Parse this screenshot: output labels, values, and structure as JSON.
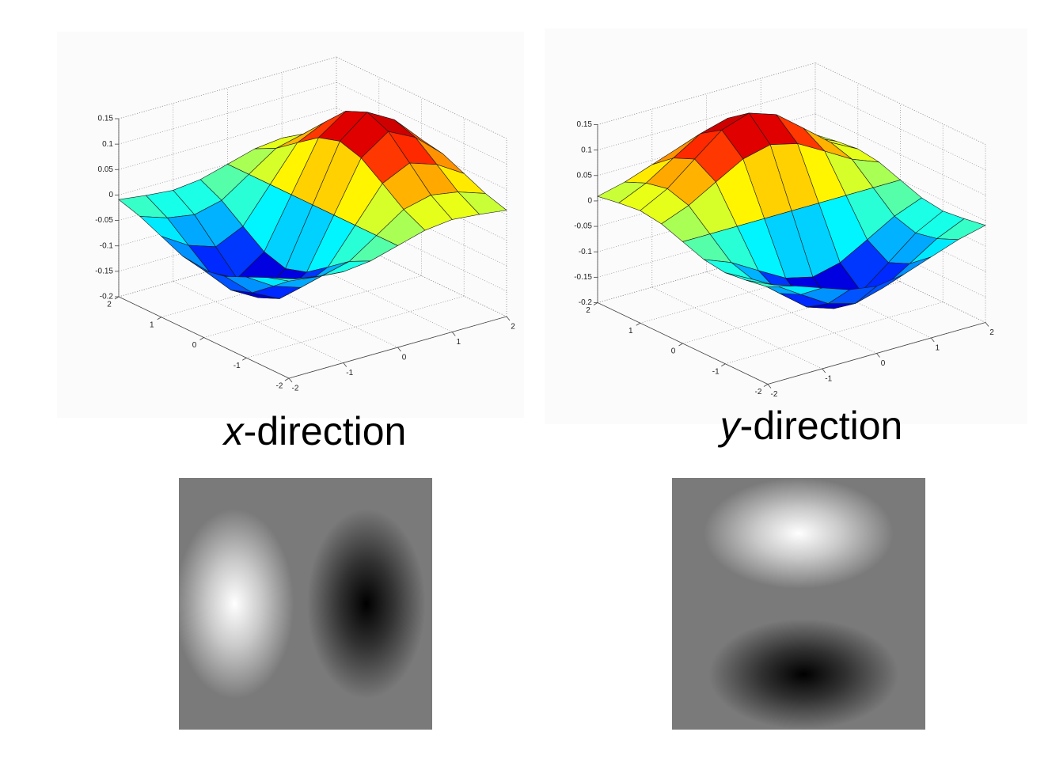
{
  "chart_data": [
    {
      "type": "surface",
      "caption": {
        "variable": "x",
        "text": "-direction"
      },
      "x": [
        -2,
        -1.5,
        -1,
        -0.5,
        0,
        0.5,
        1,
        1.5,
        2
      ],
      "y": [
        -2,
        -1.5,
        -1,
        -0.5,
        0,
        0.5,
        1,
        1.5,
        2
      ],
      "z": [
        [
          -0.009,
          -0.016,
          -0.021,
          -0.015,
          0,
          0.015,
          0.021,
          0.016,
          0.009
        ],
        [
          -0.022,
          -0.04,
          -0.049,
          -0.036,
          0,
          0.036,
          0.049,
          0.04,
          0.022
        ],
        [
          -0.041,
          -0.074,
          -0.092,
          -0.067,
          0,
          0.067,
          0.092,
          0.074,
          0.041
        ],
        [
          -0.06,
          -0.107,
          -0.134,
          -0.097,
          0,
          0.097,
          0.134,
          0.107,
          0.06
        ],
        [
          -0.068,
          -0.122,
          -0.152,
          -0.11,
          0,
          0.11,
          0.152,
          0.122,
          0.068
        ],
        [
          -0.06,
          -0.107,
          -0.134,
          -0.097,
          0,
          0.097,
          0.134,
          0.107,
          0.06
        ],
        [
          -0.041,
          -0.074,
          -0.092,
          -0.067,
          0,
          0.067,
          0.092,
          0.074,
          0.041
        ],
        [
          -0.022,
          -0.04,
          -0.049,
          -0.036,
          0,
          0.036,
          0.049,
          0.04,
          0.022
        ],
        [
          -0.009,
          -0.016,
          -0.021,
          -0.015,
          0,
          0.015,
          0.021,
          0.016,
          0.009
        ]
      ],
      "xlim": [
        -2,
        2
      ],
      "ylim": [
        -2,
        2
      ],
      "zlim": [
        -0.2,
        0.15
      ],
      "xticks": [
        -2,
        -1,
        0,
        1,
        2
      ],
      "yticks": [
        -2,
        -1,
        0,
        1,
        2
      ],
      "zticks": [
        -0.2,
        -0.15,
        -0.1,
        -0.05,
        0,
        0.05,
        0.1,
        0.15
      ],
      "colormap": "jet",
      "grid": true
    },
    {
      "type": "surface",
      "caption": {
        "variable": "y",
        "text": "-direction"
      },
      "x": [
        -2,
        -1.5,
        -1,
        -0.5,
        0,
        0.5,
        1,
        1.5,
        2
      ],
      "y": [
        -2,
        -1.5,
        -1,
        -0.5,
        0,
        0.5,
        1,
        1.5,
        2
      ],
      "z": [
        [
          -0.009,
          -0.022,
          -0.041,
          -0.06,
          -0.068,
          -0.06,
          -0.041,
          -0.022,
          -0.009
        ],
        [
          -0.016,
          -0.04,
          -0.074,
          -0.107,
          -0.122,
          -0.107,
          -0.074,
          -0.04,
          -0.016
        ],
        [
          -0.021,
          -0.049,
          -0.092,
          -0.134,
          -0.152,
          -0.134,
          -0.092,
          -0.049,
          -0.021
        ],
        [
          -0.015,
          -0.036,
          -0.067,
          -0.097,
          -0.11,
          -0.097,
          -0.067,
          -0.036,
          -0.015
        ],
        [
          0,
          0,
          0,
          0,
          0,
          0,
          0,
          0,
          0
        ],
        [
          0.015,
          0.036,
          0.067,
          0.097,
          0.11,
          0.097,
          0.067,
          0.036,
          0.015
        ],
        [
          0.021,
          0.049,
          0.092,
          0.134,
          0.152,
          0.134,
          0.092,
          0.049,
          0.021
        ],
        [
          0.016,
          0.04,
          0.074,
          0.107,
          0.122,
          0.107,
          0.074,
          0.04,
          0.016
        ],
        [
          0.009,
          0.022,
          0.041,
          0.06,
          0.068,
          0.06,
          0.041,
          0.022,
          0.009
        ]
      ],
      "xlim": [
        -2,
        2
      ],
      "ylim": [
        -2,
        2
      ],
      "zlim": [
        -0.2,
        0.15
      ],
      "xticks": [
        -2,
        -1,
        0,
        1,
        2
      ],
      "yticks": [
        -2,
        -1,
        0,
        1,
        2
      ],
      "zticks": [
        -0.2,
        -0.15,
        -0.1,
        -0.05,
        0,
        0.05,
        0.1,
        0.15
      ],
      "colormap": "jet",
      "grid": true
    }
  ]
}
